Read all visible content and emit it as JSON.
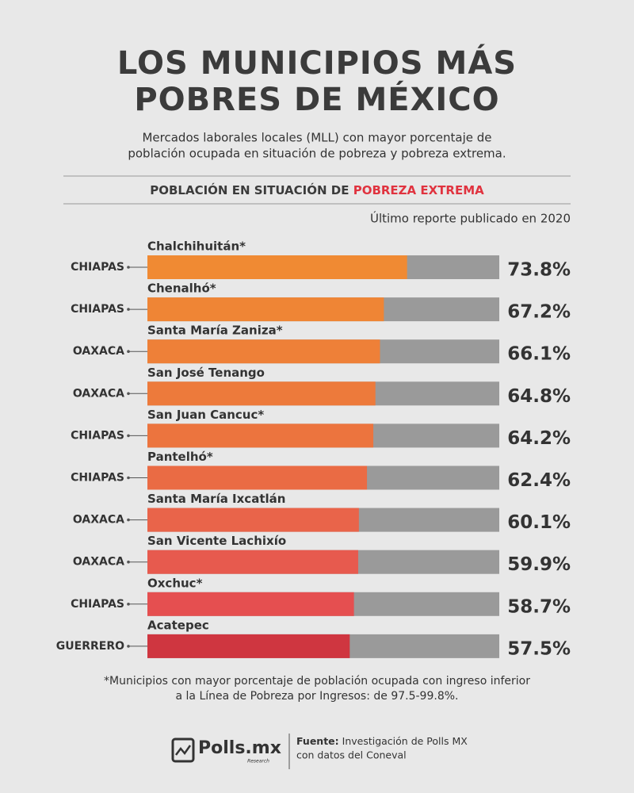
{
  "chart_data": {
    "type": "bar",
    "title_lines": [
      "LOS MUNICIPIOS MÁS",
      "POBRES DE MÉXICO"
    ],
    "subtitle_lines": [
      "Mercados laborales locales (MLL) con mayor porcentaje de",
      "población ocupada en situación de pobreza y pobreza extrema."
    ],
    "section_title": {
      "prefix": "POBLACIÓN EN SITUACIÓN DE ",
      "highlight": "POBREZA EXTREMA"
    },
    "note": "Último reporte publicado en 2020",
    "categories": [
      "Chalchihuitán*",
      "Chenalhó*",
      "Santa María Zaniza*",
      "San José Tenango",
      "San Juan Cancuc*",
      "Pantelhó*",
      "Santa María Ixcatlán",
      "San Vicente Lachixío",
      "Oxchuc*",
      "Acatepec"
    ],
    "states": [
      "CHIAPAS",
      "CHIAPAS",
      "OAXACA",
      "OAXACA",
      "CHIAPAS",
      "CHIAPAS",
      "OAXACA",
      "OAXACA",
      "CHIAPAS",
      "GUERRERO"
    ],
    "values": [
      73.8,
      67.2,
      66.1,
      64.8,
      64.2,
      62.4,
      60.1,
      59.9,
      58.7,
      57.5
    ],
    "value_labels": [
      "73.8%",
      "67.2%",
      "66.1%",
      "64.8%",
      "64.2%",
      "62.4%",
      "60.1%",
      "59.9%",
      "58.7%",
      "57.5%"
    ],
    "colors": [
      "#f08a33",
      "#ef8535",
      "#ee8038",
      "#ed7a3b",
      "#ec743e",
      "#ea6b44",
      "#e9644a",
      "#e75a4e",
      "#e54f50",
      "#cf3640"
    ],
    "xlim": [
      0,
      100
    ],
    "footnote_lines": [
      "*Municipios con mayor porcentaje de población ocupada con ingreso inferior",
      "a la Línea de Pobreza por Ingresos: de 97.5-99.8%."
    ],
    "footer": {
      "brand": "Polls.mx",
      "brand_tag": "Research",
      "source_label": "Fuente:",
      "source_lines": [
        " Investigación de Polls MX",
        "con datos del Coneval"
      ]
    }
  }
}
